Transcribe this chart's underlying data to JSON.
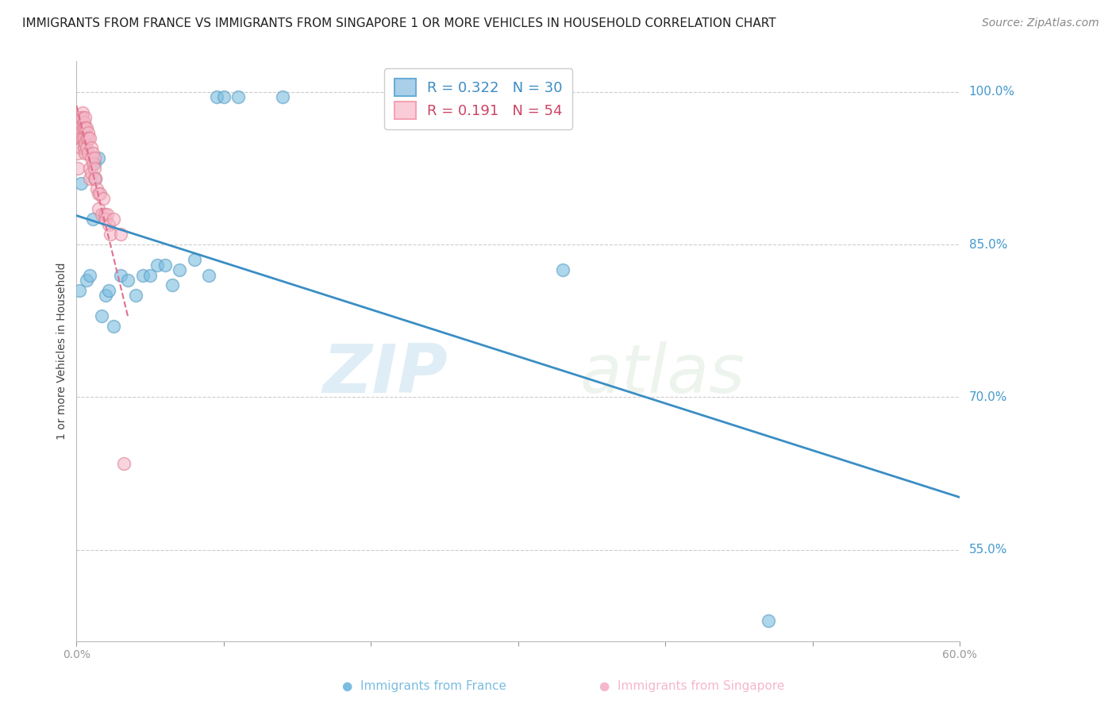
{
  "title": "IMMIGRANTS FROM FRANCE VS IMMIGRANTS FROM SINGAPORE 1 OR MORE VEHICLES IN HOUSEHOLD CORRELATION CHART",
  "source": "Source: ZipAtlas.com",
  "ylabel": "1 or more Vehicles in Household",
  "yticks": [
    100.0,
    85.0,
    70.0,
    55.0
  ],
  "ytick_labels": [
    "100.0%",
    "85.0%",
    "70.0%",
    "55.0%"
  ],
  "xmin": 0.0,
  "xmax": 60.0,
  "ymin": 46.0,
  "ymax": 103.0,
  "france_color": "#7bbde0",
  "france_edge_color": "#5a9ec4",
  "singapore_color": "#f5b8ca",
  "singapore_edge_color": "#e08090",
  "france_trend_color": "#3a8ec4",
  "singapore_trend_color": "#e07090",
  "france_R": 0.322,
  "france_N": 30,
  "singapore_R": 0.191,
  "singapore_N": 54,
  "france_scatter_x": [
    0.2,
    0.3,
    0.5,
    0.7,
    0.9,
    1.1,
    1.2,
    1.3,
    1.5,
    1.7,
    2.0,
    2.2,
    2.5,
    3.0,
    3.5,
    4.0,
    4.5,
    5.0,
    5.5,
    6.0,
    6.5,
    7.0,
    8.0,
    9.0,
    9.5,
    10.0,
    11.0,
    14.0,
    33.0,
    47.0
  ],
  "france_scatter_y": [
    80.5,
    91.0,
    95.0,
    81.5,
    82.0,
    87.5,
    93.0,
    91.5,
    93.5,
    78.0,
    80.0,
    80.5,
    77.0,
    82.0,
    81.5,
    80.0,
    82.0,
    82.0,
    83.0,
    83.0,
    81.0,
    82.5,
    83.5,
    82.0,
    99.5,
    99.5,
    99.5,
    99.5,
    82.5,
    48.0
  ],
  "singapore_scatter_x": [
    0.1,
    0.1,
    0.1,
    0.2,
    0.2,
    0.2,
    0.3,
    0.3,
    0.3,
    0.3,
    0.4,
    0.4,
    0.4,
    0.4,
    0.5,
    0.5,
    0.5,
    0.5,
    0.6,
    0.6,
    0.6,
    0.6,
    0.7,
    0.7,
    0.7,
    0.8,
    0.8,
    0.8,
    0.9,
    0.9,
    0.9,
    1.0,
    1.0,
    1.0,
    1.1,
    1.1,
    1.2,
    1.2,
    1.2,
    1.3,
    1.4,
    1.5,
    1.5,
    1.6,
    1.7,
    1.8,
    1.9,
    2.0,
    2.1,
    2.2,
    2.3,
    2.5,
    3.0,
    3.2
  ],
  "singapore_scatter_y": [
    95.5,
    94.0,
    92.5,
    97.5,
    96.5,
    95.5,
    97.5,
    96.0,
    95.5,
    94.5,
    98.0,
    97.5,
    96.5,
    95.5,
    97.0,
    96.5,
    95.5,
    94.5,
    97.5,
    96.5,
    95.0,
    94.0,
    96.5,
    95.5,
    94.5,
    96.0,
    95.5,
    94.0,
    95.5,
    92.5,
    91.5,
    94.5,
    93.5,
    92.0,
    94.0,
    93.0,
    93.5,
    92.5,
    91.5,
    91.5,
    90.5,
    90.0,
    88.5,
    90.0,
    88.0,
    89.5,
    88.0,
    87.5,
    88.0,
    87.0,
    86.0,
    87.5,
    86.0,
    63.5
  ],
  "watermark_zip": "ZIP",
  "watermark_atlas": "atlas",
  "background_color": "#ffffff",
  "grid_color": "#cccccc",
  "title_fontsize": 11,
  "axis_label_fontsize": 11,
  "legend_fontsize": 13,
  "source_fontsize": 10
}
